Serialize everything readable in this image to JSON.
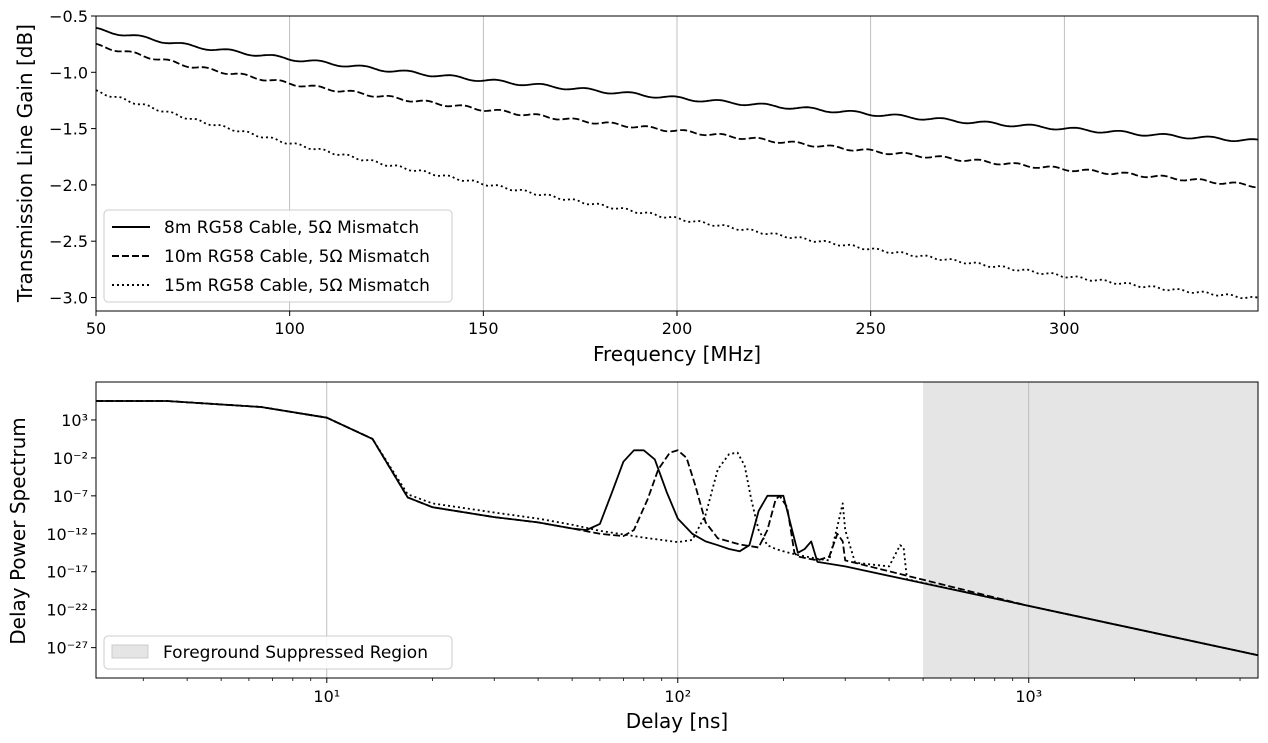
{
  "chart_data": [
    {
      "type": "line",
      "xlabel": "Frequency [MHz]",
      "ylabel": "Transmission Line Gain [dB]",
      "xlim": [
        50,
        350
      ],
      "ylim": [
        -3.12,
        -0.5
      ],
      "xticks": [
        50,
        100,
        150,
        200,
        250,
        300
      ],
      "xtick_labels": [
        "50",
        "100",
        "150",
        "200",
        "250",
        "300"
      ],
      "yticks": [
        -0.5,
        -1.0,
        -1.5,
        -2.0,
        -2.5,
        -3.0
      ],
      "ytick_labels": [
        "−0.5",
        "−1.0",
        "−1.5",
        "−2.0",
        "−2.5",
        "−3.0"
      ],
      "grid": "x",
      "legend_position": "lower-left",
      "series": [
        {
          "name": "8m RG58 Cable, 5Ω Mismatch",
          "style": "solid",
          "x": [
            50,
            75,
            100,
            125,
            150,
            175,
            200,
            225,
            250,
            275,
            300,
            325,
            350
          ],
          "values": [
            -0.62,
            -0.77,
            -0.88,
            -0.98,
            -1.07,
            -1.15,
            -1.23,
            -1.3,
            -1.37,
            -1.44,
            -1.5,
            -1.56,
            -1.61
          ]
        },
        {
          "name": "10m RG58 Cable, 5Ω Mismatch",
          "style": "dashed",
          "x": [
            50,
            75,
            100,
            125,
            150,
            175,
            200,
            225,
            250,
            275,
            300,
            325,
            350
          ],
          "values": [
            -0.76,
            -0.95,
            -1.1,
            -1.22,
            -1.33,
            -1.43,
            -1.52,
            -1.61,
            -1.7,
            -1.78,
            -1.86,
            -1.93,
            -2.01
          ]
        },
        {
          "name": "15m RG58 Cable, 5Ω Mismatch",
          "style": "dotted",
          "x": [
            50,
            75,
            100,
            125,
            150,
            175,
            200,
            225,
            250,
            275,
            300,
            325,
            350
          ],
          "values": [
            -1.17,
            -1.42,
            -1.63,
            -1.82,
            -1.99,
            -2.15,
            -2.3,
            -2.44,
            -2.57,
            -2.69,
            -2.81,
            -2.92,
            -3.01
          ]
        }
      ]
    },
    {
      "type": "line",
      "xscale": "log",
      "yscale": "log",
      "xlabel": "Delay [ns]",
      "ylabel": "Delay Power Spectrum",
      "xlim": [
        2.2,
        4500
      ],
      "ylim": [
        -31,
        8
      ],
      "xticks": [
        10,
        100,
        1000
      ],
      "xtick_labels": [
        "10¹",
        "10²",
        "10³"
      ],
      "yticks": [
        3,
        -2,
        -7,
        -12,
        -17,
        -22,
        -27
      ],
      "ytick_labels": [
        "10³",
        "10⁻²",
        "10⁻⁷",
        "10⁻¹²",
        "10⁻¹⁷",
        "10⁻²²",
        "10⁻²⁷"
      ],
      "grid": "x",
      "legend_position": "lower-left",
      "shaded_region": {
        "name": "Foreground Suppressed Region",
        "x": [
          500,
          4500
        ],
        "color": "#e5e5e5"
      },
      "series": [
        {
          "style": "solid",
          "x": [
            2.2,
            3.5,
            6.5,
            10,
            13.5,
            17,
            20,
            30,
            40,
            50,
            55,
            60,
            65,
            70,
            75,
            80,
            86,
            93,
            100,
            110,
            120,
            130,
            140,
            150,
            160,
            170,
            180,
            200,
            220,
            230,
            240,
            250,
            300,
            1000,
            4500
          ],
          "log10_values": [
            5.5,
            5.5,
            4.7,
            3.3,
            0.5,
            -7.2,
            -8.5,
            -9.8,
            -10.5,
            -11.3,
            -11.5,
            -10.7,
            -6.5,
            -2.5,
            -1.0,
            -1.0,
            -2.2,
            -6.5,
            -10.0,
            -12.0,
            -13.0,
            -13.5,
            -14.0,
            -14.3,
            -13.5,
            -9.0,
            -7.0,
            -7.0,
            -14.5,
            -14.0,
            -13.0,
            -15.7,
            -16.3,
            -21.5,
            -28.0
          ]
        },
        {
          "style": "dashed",
          "x": [
            2.2,
            3.5,
            6.5,
            10,
            13.5,
            17,
            20,
            30,
            40,
            50,
            60,
            70,
            75,
            82,
            88,
            95,
            100,
            106,
            112,
            120,
            130,
            150,
            170,
            180,
            190,
            195,
            205,
            215,
            220,
            250,
            270,
            285,
            295,
            300,
            1000,
            4500
          ],
          "log10_values": [
            5.5,
            5.5,
            4.7,
            3.3,
            0.5,
            -7.2,
            -8.5,
            -9.8,
            -10.5,
            -11.3,
            -12.0,
            -12.3,
            -11.5,
            -7.5,
            -3.5,
            -1.3,
            -1.0,
            -2.0,
            -5.5,
            -10.5,
            -12.6,
            -13.4,
            -13.8,
            -11.5,
            -7.5,
            -7.0,
            -8.5,
            -14.5,
            -15.0,
            -15.5,
            -15.0,
            -12.0,
            -13.0,
            -15.5,
            -21.5,
            -28.0
          ]
        },
        {
          "style": "dotted",
          "x": [
            2.2,
            3.5,
            6.5,
            10,
            13.5,
            17,
            20,
            30,
            40,
            50,
            60,
            80,
            100,
            110,
            120,
            130,
            140,
            148,
            155,
            162,
            170,
            180,
            190,
            200,
            220,
            250,
            270,
            285,
            295,
            300,
            320,
            350,
            400,
            430,
            440,
            450,
            1000,
            4500
          ],
          "log10_values": [
            5.5,
            5.5,
            4.7,
            3.3,
            0.5,
            -6.8,
            -8.0,
            -9.2,
            -10.0,
            -10.8,
            -11.6,
            -12.5,
            -13.1,
            -12.8,
            -9.5,
            -3.5,
            -1.5,
            -1.3,
            -3.0,
            -7.5,
            -11.5,
            -13.5,
            -14.0,
            -14.3,
            -14.8,
            -15.3,
            -15.5,
            -11.0,
            -8.0,
            -11.5,
            -15.8,
            -16.0,
            -16.3,
            -13.5,
            -13.8,
            -18.0,
            -21.5,
            -28.0
          ]
        }
      ]
    }
  ]
}
